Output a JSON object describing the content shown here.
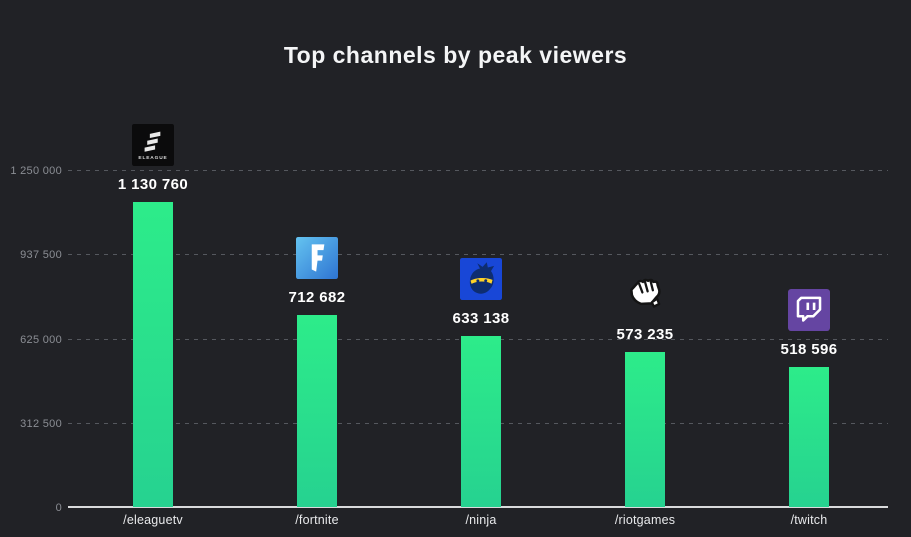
{
  "title": "Top channels by peak viewers",
  "colors": {
    "background": "#212226",
    "title_text": "#f4f5f6",
    "bar_top": "#2dec8a",
    "bar_bottom": "#26d290",
    "grid": "#55585e",
    "axis": "#d9dadc",
    "ytick_text": "#8b8e94",
    "xtick_text": "#e8e9eb",
    "value_text": "#ffffff",
    "fortnite_blue_light": "#64c3f0",
    "fortnite_blue_dark": "#2e74d2",
    "ninja_blue": "#1847d7",
    "ninja_navy": "#0e2d71",
    "ninja_yellow": "#ffd327",
    "twitch_purple": "#6545a2",
    "eleague_black": "#0b0b0c"
  },
  "chart_data": {
    "type": "bar",
    "title": "Top channels by peak viewers",
    "categories": [
      "/eleaguetv",
      "/fortnite",
      "/ninja",
      "/riotgames",
      "/twitch"
    ],
    "values": [
      1130760,
      712682,
      633138,
      573235,
      518596
    ],
    "value_labels": [
      "1 130 760",
      "712 682",
      "633 138",
      "573 235",
      "518 596"
    ],
    "icons": [
      "eleague-logo-icon",
      "fortnite-logo-icon",
      "ninja-logo-icon",
      "riot-fist-icon",
      "twitch-glitch-icon"
    ],
    "xlabel": "",
    "ylabel": "",
    "ylim": [
      0,
      1250000
    ],
    "yticks": [
      0,
      312500,
      625000,
      937500,
      1250000
    ],
    "ytick_labels": [
      "0",
      "312 500",
      "625 000",
      "937 500",
      "1 250 000"
    ],
    "grid": "dashed-horizontal",
    "legend": "none"
  }
}
